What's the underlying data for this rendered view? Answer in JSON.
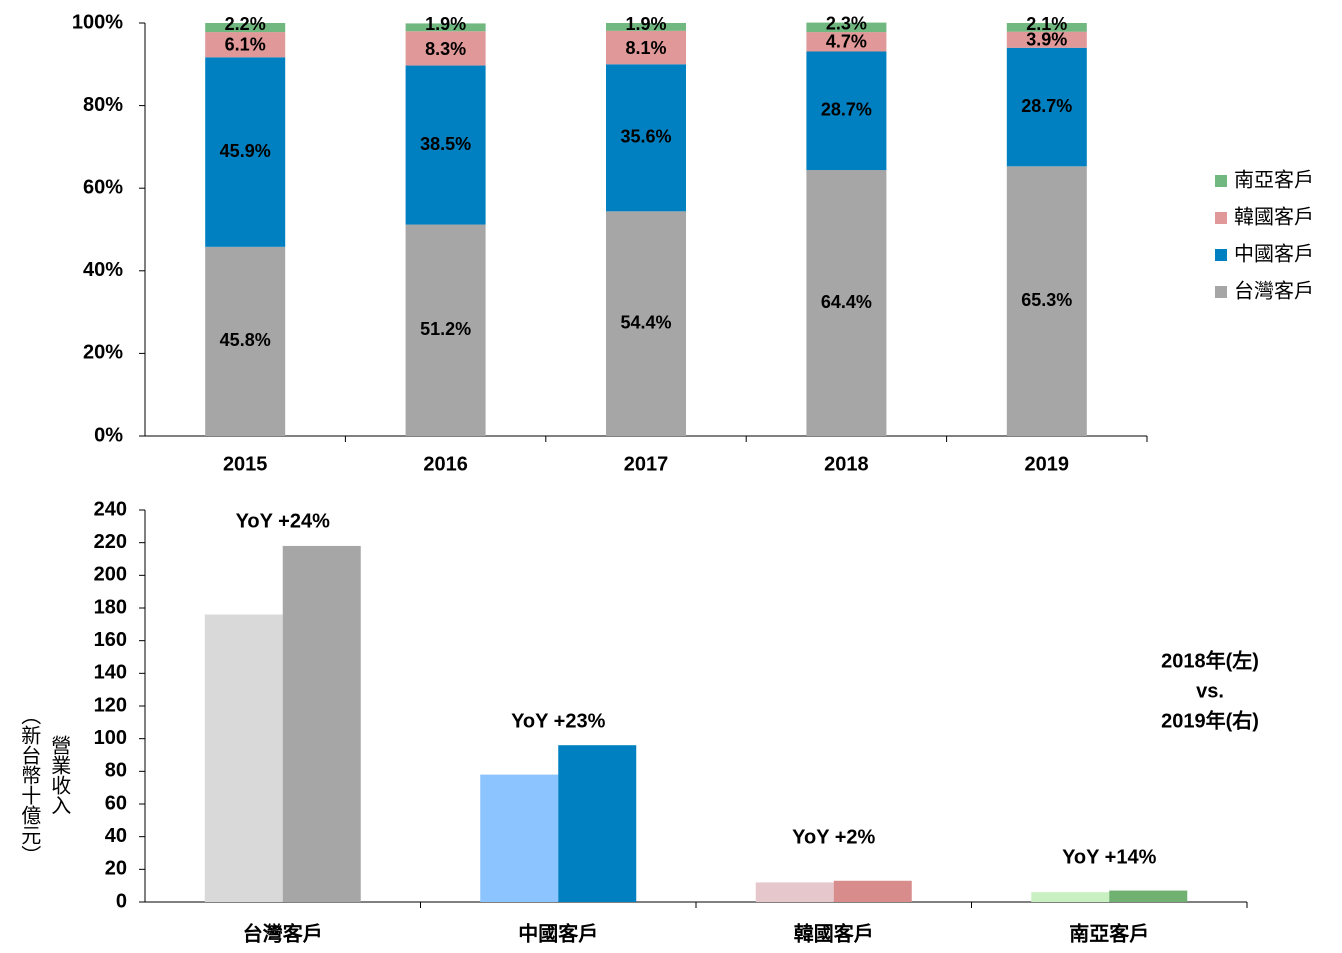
{
  "chart_data": [
    {
      "type": "stacked_bar",
      "categories": [
        "2015",
        "2016",
        "2017",
        "2018",
        "2019"
      ],
      "series": [
        {
          "name": "台灣客戶",
          "color": "#a6a6a6",
          "values": [
            45.8,
            51.2,
            54.4,
            64.4,
            65.3
          ],
          "value_labels": [
            "45.8%",
            "51.2%",
            "54.4%",
            "64.4%",
            "65.3%"
          ]
        },
        {
          "name": "中國客戶",
          "color": "#0080c0",
          "values": [
            45.9,
            38.5,
            35.6,
            28.7,
            28.7
          ],
          "value_labels": [
            "45.9%",
            "38.5%",
            "35.6%",
            "28.7%",
            "28.7%"
          ]
        },
        {
          "name": "韓國客戶",
          "color": "#e09898",
          "values": [
            6.1,
            8.3,
            8.1,
            4.7,
            3.9
          ],
          "value_labels": [
            "6.1%",
            "8.3%",
            "8.1%",
            "4.7%",
            "3.9%"
          ]
        },
        {
          "name": "南亞客戶",
          "color": "#70b880",
          "values": [
            2.2,
            1.9,
            1.9,
            2.3,
            2.1
          ],
          "value_labels": [
            "2.2%",
            "1.9%",
            "1.9%",
            "2.3%",
            "2.1%"
          ]
        }
      ],
      "ylim": [
        0,
        100
      ],
      "yticks": [
        {
          "value": 0,
          "label": "0%"
        },
        {
          "value": 20,
          "label": "20%"
        },
        {
          "value": 40,
          "label": "40%"
        },
        {
          "value": 60,
          "label": "60%"
        },
        {
          "value": 80,
          "label": "80%"
        },
        {
          "value": 100,
          "label": "100%"
        }
      ],
      "legend": "right"
    },
    {
      "type": "grouped_bar",
      "categories": [
        "台灣客戶",
        "中國客戶",
        "韓國客戶",
        "南亞客戶"
      ],
      "series": [
        {
          "colors": [
            "#d9d9d9",
            "#8cc4ff",
            "#e6c8cc",
            "#c8f0c0"
          ],
          "values": [
            176,
            78,
            12,
            6
          ]
        },
        {
          "colors": [
            "#a6a6a6",
            "#0080c0",
            "#d88c8c",
            "#70b070"
          ],
          "values": [
            218,
            96,
            13,
            7
          ]
        }
      ],
      "annotations": [
        "YoY +24%",
        "YoY +23%",
        "YoY +2%",
        "YoY +14%"
      ],
      "note": [
        "2018年(左)",
        "vs.",
        "2019年(右)"
      ],
      "y_label": [
        "營業收入",
        "（新台幣十億元）"
      ],
      "ylim": [
        0,
        240
      ],
      "yticks": [
        0,
        20,
        40,
        60,
        80,
        100,
        120,
        140,
        160,
        180,
        200,
        220,
        240
      ]
    }
  ]
}
